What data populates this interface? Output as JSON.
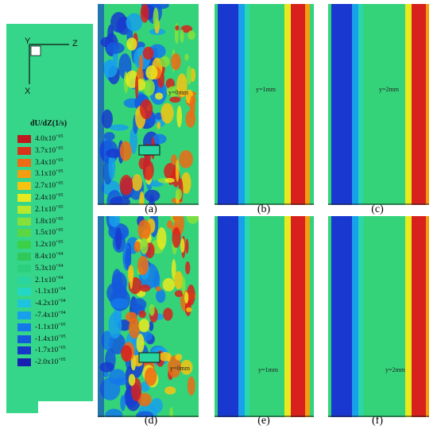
{
  "legend": {
    "title": "dU/dZ(1/s)",
    "entries": [
      {
        "label": "4.0x10+05",
        "color": "#c0181c"
      },
      {
        "label": "3.7x10+05",
        "color": "#d8341c"
      },
      {
        "label": "3.4x10+05",
        "color": "#ee6a14"
      },
      {
        "label": "3.1x10+05",
        "color": "#f49c12"
      },
      {
        "label": "2.7x10+05",
        "color": "#f6c410"
      },
      {
        "label": "2.4x10+05",
        "color": "#e8ea1e"
      },
      {
        "label": "2.1x10+05",
        "color": "#b8e82c"
      },
      {
        "label": "1.8x10+05",
        "color": "#86e03a"
      },
      {
        "label": "1.5x10+05",
        "color": "#5ad843"
      },
      {
        "label": "1.2x10+05",
        "color": "#3ccf48"
      },
      {
        "label": "8.4x10+04",
        "color": "#30c85a"
      },
      {
        "label": "5.3x10+04",
        "color": "#2ad07c"
      },
      {
        "label": "2.1x10+04",
        "color": "#2ad6a0"
      },
      {
        "label": "-1.1x10+04",
        "color": "#22d8c4"
      },
      {
        "label": "-4.2x10+04",
        "color": "#1ec4de"
      },
      {
        "label": "-7.4x10+04",
        "color": "#18a0ea"
      },
      {
        "label": "-1.1x10+05",
        "color": "#1478ea"
      },
      {
        "label": "-1.4x10+05",
        "color": "#1458dc"
      },
      {
        "label": "-1.7x10+05",
        "color": "#1638c8"
      },
      {
        "label": "-2.0x10+05",
        "color": "#1820b0"
      }
    ]
  },
  "axes": {
    "y": "Y",
    "z": "Z",
    "x": "X"
  },
  "panels": [
    {
      "caption": "(a)",
      "y_label": "y=0mm"
    },
    {
      "caption": "(b)",
      "y_label": "y=1mm"
    },
    {
      "caption": "(c)",
      "y_label": "y=2mm"
    },
    {
      "caption": "(d)",
      "y_label": "y=0mm"
    },
    {
      "caption": "(e)",
      "y_label": "y=1mm"
    },
    {
      "caption": "(f)",
      "y_label": "y=2mm"
    }
  ],
  "colors": {
    "background_field": "#34d37a",
    "blue": "#1838d0",
    "red": "#d8201c"
  }
}
